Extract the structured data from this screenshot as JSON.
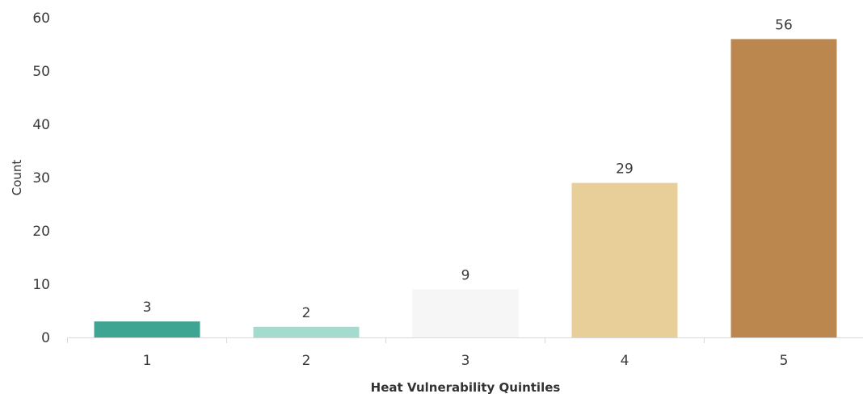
{
  "chart_data": {
    "type": "bar",
    "categories": [
      "1",
      "2",
      "3",
      "4",
      "5"
    ],
    "values": [
      3,
      2,
      9,
      29,
      56
    ],
    "data_labels": [
      "3",
      "2",
      "9",
      "29",
      "56"
    ],
    "colors": [
      "#3fa593",
      "#a3dccf",
      "#f6f6f6",
      "#e8cf99",
      "#bb874f"
    ],
    "xlabel": "Heat Vulnerability Quintiles",
    "ylabel": "Count",
    "ylim": [
      0,
      60
    ],
    "yticks": [
      0,
      10,
      20,
      30,
      40,
      50,
      60
    ],
    "grid": false,
    "legend": "none"
  }
}
